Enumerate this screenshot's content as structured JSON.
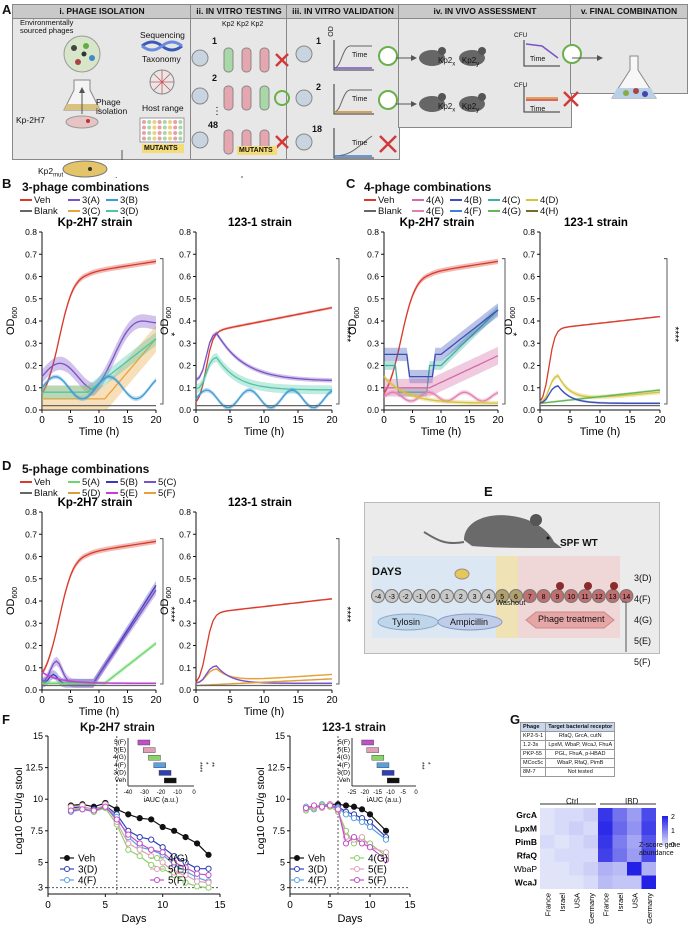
{
  "panel_labels": {
    "A": "A",
    "B": "B",
    "C": "C",
    "D": "D",
    "E": "E",
    "F": "F",
    "G": "G"
  },
  "panelA": {
    "headers": [
      "i. PHAGE ISOLATION",
      "ii. IN VITRO TESTING",
      "iii. IN VITRO VALIDATION",
      "iv. IN VIVO ASSESSMENT",
      "v. FINAL COMBINATION"
    ],
    "env_phages": "Environmentally sourced phages",
    "kp_strain": "Kp-2H7",
    "phage_isolation": "Phage isolation",
    "sequencing": "Sequencing",
    "taxonomy": "Taxonomy",
    "host_range": "Host range",
    "mutants": "MUTANTS",
    "kp2_labels": [
      "Kp2",
      "Kp2",
      "Kp2"
    ],
    "kp2_mut": "Kp2",
    "kp2_mut_sub": "mut",
    "phage_numbers": [
      "1",
      "2",
      "48"
    ],
    "valid_numbers": [
      "1",
      "2",
      "18"
    ],
    "od": "OD",
    "time": "Time",
    "cfu": "CFU",
    "mouse_labels": [
      "Kp2",
      "Kp2"
    ],
    "mouse_subs": [
      "x",
      "y"
    ]
  },
  "panelB": {
    "title": "3-phage combinations",
    "strains": [
      "Kp-2H7 strain",
      "123-1 strain"
    ],
    "legend": [
      {
        "label": "Veh",
        "color": "#d93a2b"
      },
      {
        "label": "3(A)",
        "color": "#7a52c7"
      },
      {
        "label": "3(B)",
        "color": "#3f9bd6"
      },
      {
        "label": "Blank",
        "color": "#666666"
      },
      {
        "label": "3(C)",
        "color": "#e8a33a"
      },
      {
        "label": "3(D)",
        "color": "#4dc6a5"
      }
    ],
    "sig": [
      "*",
      "****"
    ]
  },
  "panelC": {
    "title": "4-phage combinations",
    "strains": [
      "Kp-2H7 strain",
      "123-1 strain"
    ],
    "legend": [
      {
        "label": "Veh",
        "color": "#d93a2b"
      },
      {
        "label": "4(A)",
        "color": "#d46aa6"
      },
      {
        "label": "4(B)",
        "color": "#3a4fb8"
      },
      {
        "label": "4(C)",
        "color": "#3fb0a0"
      },
      {
        "label": "4(D)",
        "color": "#d8c23a"
      },
      {
        "label": "Blank",
        "color": "#666666"
      },
      {
        "label": "4(E)",
        "color": "#e27fb0"
      },
      {
        "label": "4(F)",
        "color": "#3f7ed6"
      },
      {
        "label": "4(G)",
        "color": "#64b85a"
      },
      {
        "label": "4(H)",
        "color": "#7a6a2a"
      }
    ],
    "sig": [
      "*",
      "****"
    ]
  },
  "panelD": {
    "title": "5-phage combinations",
    "strains": [
      "Kp-2H7 strain",
      "123-1 strain"
    ],
    "legend": [
      {
        "label": "Veh",
        "color": "#d93a2b"
      },
      {
        "label": "5(A)",
        "color": "#6cd66c"
      },
      {
        "label": "5(B)",
        "color": "#3a3ab8"
      },
      {
        "label": "5(C)",
        "color": "#7a52c7"
      },
      {
        "label": "Blank",
        "color": "#666666"
      },
      {
        "label": "5(D)",
        "color": "#d8a03a"
      },
      {
        "label": "5(E)",
        "color": "#c23fd6"
      },
      {
        "label": "5(F)",
        "color": "#e8a03a"
      }
    ],
    "sig": [
      "****",
      "****"
    ]
  },
  "axes": {
    "od_label": "OD",
    "od_sub": "600",
    "time_label": "Time (h)",
    "x_ticks": [
      "0",
      "5",
      "10",
      "15",
      "20"
    ],
    "y_ticks": [
      "0.0",
      "0.1",
      "0.2",
      "0.3",
      "0.4",
      "0.5",
      "0.6",
      "0.7",
      "0.8"
    ]
  },
  "panelE": {
    "mouse": "SPF WT",
    "days": "DAYS",
    "day_numbers": [
      "-4",
      "-3",
      "-2",
      "-1",
      "0",
      "1",
      "2",
      "3",
      "4",
      "5",
      "6",
      "7",
      "8",
      "9",
      "10",
      "11",
      "12",
      "13",
      "14"
    ],
    "tylosin": "Tylosin",
    "ampicillin": "Ampicillin",
    "washout": "Washout",
    "phage_treatment": "Phage treatment",
    "combos": [
      "3(D)",
      "4(F)",
      "4(G)",
      "5(E)",
      "5(F)"
    ]
  },
  "panelF": {
    "strains": [
      "Kp-2H7 strain",
      "123-1 strain"
    ],
    "ylabel": "Log10 CFU/g stool",
    "xlabel": "Days",
    "x_ticks": [
      "0",
      "5",
      "10",
      "15"
    ],
    "y_ticks": [
      "3",
      "5",
      "7.5",
      "10",
      "12.5",
      "15"
    ],
    "legend": [
      {
        "label": "Veh",
        "color": "#111111"
      },
      {
        "label": "3(D)",
        "color": "#2f3fb8"
      },
      {
        "label": "4(F)",
        "color": "#5aa0e0"
      },
      {
        "label": "4(G)",
        "color": "#8cd16a"
      },
      {
        "label": "5(E)",
        "color": "#e0a0b8"
      },
      {
        "label": "5(F)",
        "color": "#c050c8"
      }
    ],
    "inset_labels": [
      "5(F)",
      "5(E)",
      "4(G)",
      "4(F)",
      "3(D)",
      "Veh"
    ],
    "inset_x": "iAUC (a.u.)",
    "inset_ticks_left": [
      "-40",
      "-30",
      "-20",
      "-10",
      "0"
    ],
    "inset_ticks_right": [
      "-25",
      "-20",
      "-15",
      "-10",
      "-5",
      "0"
    ],
    "sig_left": [
      "****",
      "*",
      "**"
    ],
    "sig_right": [
      "***",
      "*"
    ]
  },
  "panelG": {
    "table_headers": [
      "Phage",
      "Target bacterial receptor"
    ],
    "table_rows": [
      [
        "KP2-5-1",
        "RfaQ, GrcA, cutN"
      ],
      [
        "1.2-3s",
        "LpxM, WbaP, WcaJ, FhuA"
      ],
      [
        "PKP-55",
        "PGL, FhuA, p-HBAD"
      ],
      [
        "MCoc5c",
        "WbaP, RfaQ, PimB"
      ],
      [
        "8M-7",
        "Not tested"
      ]
    ],
    "groups": [
      "Ctrl",
      "IBD"
    ],
    "rows": [
      "GrcA",
      "LpxM",
      "PimB",
      "RfaQ",
      "WbaP",
      "WcaJ"
    ],
    "bold_rows": [
      true,
      true,
      true,
      true,
      false,
      true
    ],
    "cols": [
      "France",
      "Israel",
      "USA",
      "Germany",
      "France",
      "Israel",
      "USA",
      "Germany"
    ],
    "legend_title": "Z-score gene abundance",
    "legend_ticks": [
      "2",
      "1",
      "0"
    ]
  }
}
